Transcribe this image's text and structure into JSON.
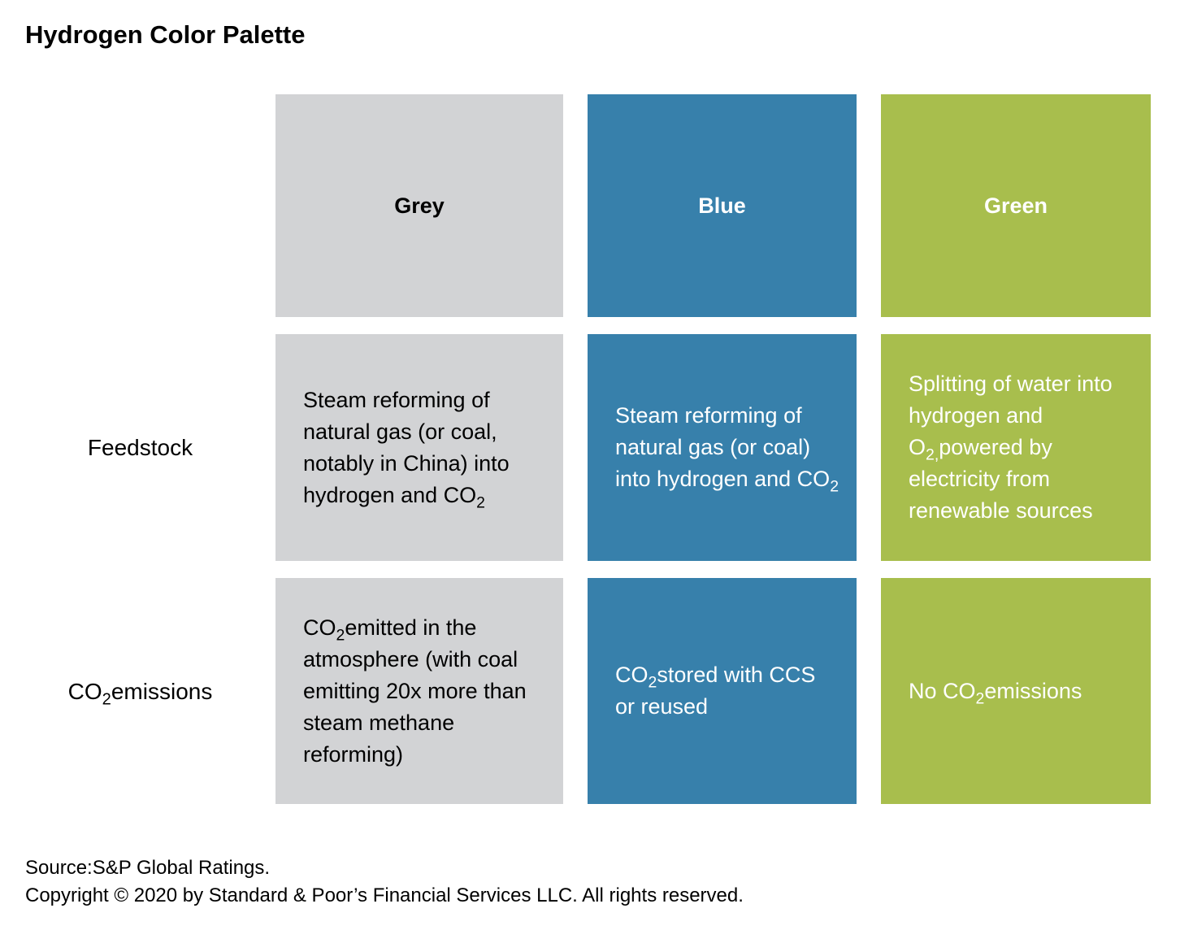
{
  "title": "Hydrogen Color Palette",
  "palette": {
    "grey": "#D2D3D5",
    "blue": "#3780AB",
    "green": "#A8BE4D",
    "text_dark": "#000000",
    "text_light": "#FFFFFF"
  },
  "table": {
    "columns": [
      {
        "id": "grey",
        "label": "Grey"
      },
      {
        "id": "blue",
        "label": "Blue"
      },
      {
        "id": "green",
        "label": "Green"
      }
    ],
    "rows": [
      {
        "label": "Feedstock",
        "cells": [
          "Steam reforming of natural gas (or coal, notably in China) into hydrogen and CO_{2}",
          "Steam reforming of natural gas (or coal) into hydrogen and CO_{2}",
          "Splitting of water into hydrogen and O_{2,}powered by electricity from renewable sources"
        ]
      },
      {
        "label": "CO_{2}emissions",
        "cells": [
          "CO_{2}emitted in the atmosphere (with coal emitting 20x more than steam methane reforming)",
          "CO_{2}stored with CCS or reused",
          "No CO_{2}emissions"
        ]
      }
    ]
  },
  "footer": {
    "source": "Source:S&P Global Ratings.",
    "copyright": "Copyright © 2020 by Standard & Poor’s Financial Services LLC. All rights reserved."
  }
}
